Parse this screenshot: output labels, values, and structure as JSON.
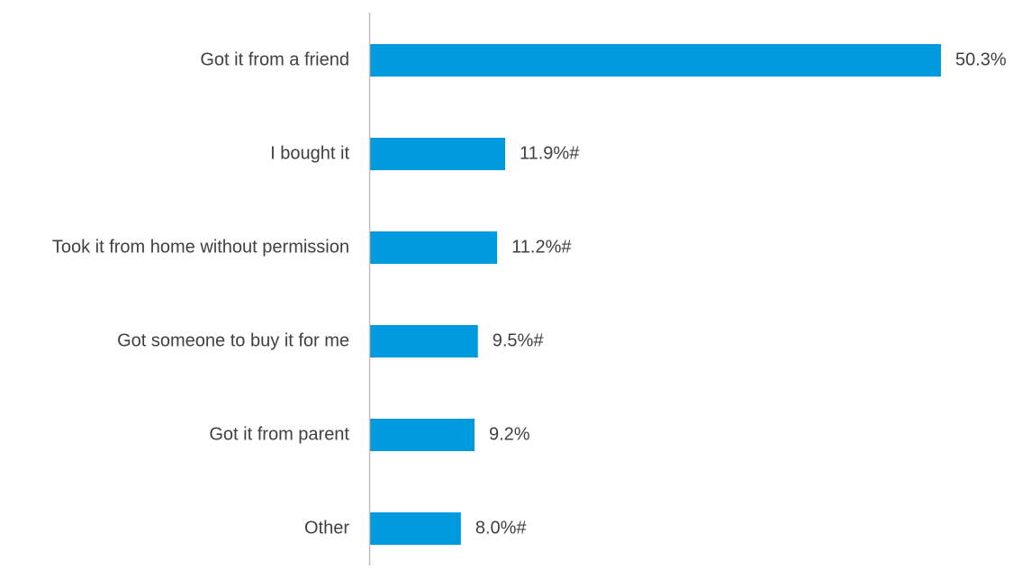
{
  "chart_data": {
    "type": "bar",
    "orientation": "horizontal",
    "categories": [
      "Got it from a friend",
      "I bought it",
      "Took it from home without permission",
      "Got someone to buy it for me",
      "Got it from parent",
      "Other"
    ],
    "values": [
      50.3,
      11.9,
      11.2,
      9.5,
      9.2,
      8.0
    ],
    "data_labels": [
      "50.3%",
      "11.9%#",
      "11.2%#",
      "9.5%#",
      "9.2%",
      "8.0%#"
    ],
    "title": "",
    "xlabel": "",
    "ylabel": "",
    "xlim": [
      0,
      50.3
    ],
    "grid": false,
    "legend": "none",
    "colors": {
      "bar": "#009ADE",
      "axis": "#BFBFBF",
      "text": "#404040"
    }
  }
}
